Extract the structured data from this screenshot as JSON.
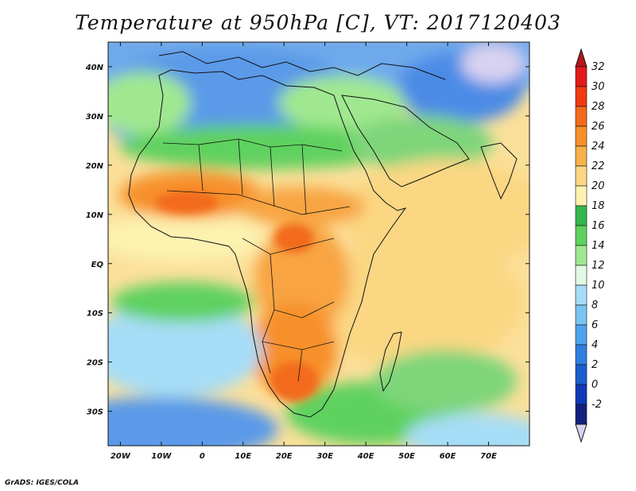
{
  "title": "Temperature at 950hPa [C], VT: 2017120403",
  "credit": "GrADS: IGES/COLA",
  "map": {
    "lon_range": [
      -23,
      80
    ],
    "lat_range": [
      -37,
      45
    ],
    "lon_labels": [
      "20W",
      "10W",
      "0",
      "10E",
      "20E",
      "30E",
      "40E",
      "50E",
      "60E",
      "70E"
    ],
    "lon_values": [
      -20,
      -10,
      0,
      10,
      20,
      30,
      40,
      50,
      60,
      70
    ],
    "lat_labels": [
      "40N",
      "30N",
      "20N",
      "10N",
      "EQ",
      "10S",
      "20S",
      "30S"
    ],
    "lat_values": [
      40,
      30,
      20,
      10,
      0,
      -10,
      -20,
      -30
    ]
  },
  "colorbar": {
    "labels": [
      "32",
      "30",
      "28",
      "26",
      "24",
      "22",
      "20",
      "18",
      "16",
      "14",
      "12",
      "10",
      "8",
      "6",
      "4",
      "2",
      "0",
      "-2"
    ],
    "colors": [
      "#e31a1c",
      "#f03a12",
      "#f36a1a",
      "#f7902a",
      "#f8b24a",
      "#fbd783",
      "#fdf2b0",
      "#33b84a",
      "#5fd15f",
      "#a0e890",
      "#e3f8e3",
      "#a6ddf6",
      "#79c4f2",
      "#4ea3ec",
      "#2f7fe0",
      "#1a5ed0",
      "#0f3ab8",
      "#14207e"
    ],
    "top_cap_color": "#b5171c",
    "bottom_cap_color": "#d8d2f0"
  }
}
